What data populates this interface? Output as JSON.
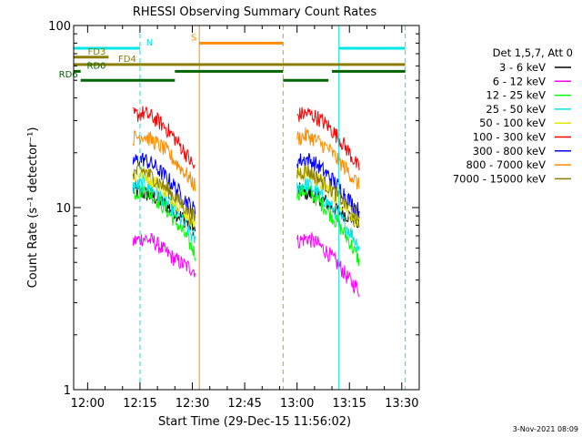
{
  "chart_data": {
    "type": "line",
    "title": "RHESSI Observing Summary Count Rates",
    "xlabel": "Start Time (29-Dec-15 11:56:02)",
    "ylabel": "Count Rate (s⁻¹ detector⁻¹)",
    "y_scale": "log",
    "ylim": [
      1,
      100
    ],
    "y_ticks": [
      "1",
      "10",
      "100"
    ],
    "x_start": "11:56:02",
    "xlim": [
      "11:56",
      "13:35"
    ],
    "x_ticks": [
      "12:00",
      "12:15",
      "12:30",
      "12:45",
      "13:00",
      "13:15",
      "13:30"
    ],
    "legend_header": "Det 1,5,7, Att 0",
    "legend_position": "right",
    "series": [
      {
        "name": "3 - 6 keV",
        "color": "#000000",
        "segments": [
          {
            "x": [
              "12:13",
              "12:16",
              "12:19",
              "12:22",
              "12:25",
              "12:28",
              "12:31"
            ],
            "y": [
              12.5,
              12.0,
              11.5,
              10.5,
              9.5,
              8.5,
              7.5
            ]
          },
          {
            "x": [
              "13:00",
              "13:03",
              "13:06",
              "13:09",
              "13:12",
              "13:15",
              "13:18"
            ],
            "y": [
              12.5,
              12.0,
              11.5,
              10.5,
              9.5,
              9.0,
              8.0
            ]
          }
        ]
      },
      {
        "name": "6 - 12 keV",
        "color": "#ff00ff",
        "segments": [
          {
            "x": [
              "12:13",
              "12:16",
              "12:19",
              "12:22",
              "12:25",
              "12:28",
              "12:31"
            ],
            "y": [
              6.5,
              6.8,
              6.5,
              5.8,
              5.2,
              4.8,
              4.5
            ]
          },
          {
            "x": [
              "13:00",
              "13:03",
              "13:06",
              "13:09",
              "13:12",
              "13:15",
              "13:18"
            ],
            "y": [
              6.5,
              6.8,
              6.3,
              5.6,
              4.8,
              4.0,
              3.5
            ]
          }
        ]
      },
      {
        "name": "12 - 25 keV",
        "color": "#00ff00",
        "segments": [
          {
            "x": [
              "12:13",
              "12:16",
              "12:19",
              "12:22",
              "12:25",
              "12:28",
              "12:31"
            ],
            "y": [
              12.0,
              12.5,
              11.5,
              10.0,
              8.5,
              7.0,
              5.5
            ]
          },
          {
            "x": [
              "13:00",
              "13:03",
              "13:06",
              "13:09",
              "13:12",
              "13:15",
              "13:18"
            ],
            "y": [
              12.0,
              12.5,
              11.0,
              9.5,
              8.0,
              6.5,
              5.0
            ]
          }
        ]
      },
      {
        "name": "25 - 50 keV",
        "color": "#00e5e5",
        "segments": [
          {
            "x": [
              "12:13",
              "12:16",
              "12:19",
              "12:22",
              "12:25",
              "12:28",
              "12:31"
            ],
            "y": [
              13.0,
              13.5,
              12.5,
              11.0,
              9.5,
              8.0,
              6.5
            ]
          },
          {
            "x": [
              "13:00",
              "13:03",
              "13:06",
              "13:09",
              "13:12",
              "13:15",
              "13:18"
            ],
            "y": [
              13.0,
              13.5,
              12.0,
              10.5,
              9.0,
              7.5,
              6.0
            ]
          }
        ]
      },
      {
        "name": "50 - 100 keV",
        "color": "#e5e500",
        "segments": [
          {
            "x": [
              "12:13",
              "12:16",
              "12:19",
              "12:22",
              "12:25",
              "12:28",
              "12:31"
            ],
            "y": [
              15.0,
              15.5,
              14.0,
              12.5,
              11.0,
              9.5,
              8.0
            ]
          },
          {
            "x": [
              "13:00",
              "13:03",
              "13:06",
              "13:09",
              "13:12",
              "13:15",
              "13:18"
            ],
            "y": [
              15.0,
              15.5,
              14.0,
              12.5,
              11.0,
              9.5,
              8.0
            ]
          }
        ]
      },
      {
        "name": "100 - 300 keV",
        "color": "#ff0000",
        "segments": [
          {
            "x": [
              "12:13",
              "12:16",
              "12:19",
              "12:22",
              "12:25",
              "12:28",
              "12:31"
            ],
            "y": [
              32,
              33,
              31,
              28,
              24,
              20,
              16
            ]
          },
          {
            "x": [
              "13:00",
              "13:03",
              "13:06",
              "13:09",
              "13:12",
              "13:15",
              "13:18"
            ],
            "y": [
              32,
              33,
              31,
              28,
              24,
              20,
              16
            ]
          }
        ]
      },
      {
        "name": "300 - 800 keV",
        "color": "#0000ff",
        "segments": [
          {
            "x": [
              "12:13",
              "12:16",
              "12:19",
              "12:22",
              "12:25",
              "12:28",
              "12:31"
            ],
            "y": [
              18,
              18.5,
              17,
              15,
              13,
              11,
              9.5
            ]
          },
          {
            "x": [
              "13:00",
              "13:03",
              "13:06",
              "13:09",
              "13:12",
              "13:15",
              "13:18"
            ],
            "y": [
              18,
              18.5,
              17,
              15,
              13,
              11,
              9.5
            ]
          }
        ]
      },
      {
        "name": "800 - 7000 keV",
        "color": "#ff8c00",
        "segments": [
          {
            "x": [
              "12:13",
              "12:16",
              "12:19",
              "12:22",
              "12:25",
              "12:28",
              "12:31"
            ],
            "y": [
              24,
              25,
              23,
              21,
              18,
              15.5,
              13
            ]
          },
          {
            "x": [
              "13:00",
              "13:03",
              "13:06",
              "13:09",
              "13:12",
              "13:15",
              "13:18"
            ],
            "y": [
              24,
              25,
              23,
              21,
              18,
              15.5,
              13
            ]
          }
        ]
      },
      {
        "name": "7000 - 15000 keV",
        "color": "#8b7d00",
        "segments": [
          {
            "x": [
              "12:13",
              "12:16",
              "12:19",
              "12:22",
              "12:25",
              "12:28",
              "12:31"
            ],
            "y": [
              15.5,
              16,
              14.5,
              13,
              11.5,
              10,
              8.5
            ]
          },
          {
            "x": [
              "13:00",
              "13:03",
              "13:06",
              "13:09",
              "13:12",
              "13:15",
              "13:18"
            ],
            "y": [
              15.5,
              16,
              14.5,
              13,
              11.5,
              10,
              8.5
            ]
          }
        ]
      }
    ],
    "vertical_lines": [
      {
        "x": "11:56",
        "color": "#00e5e5",
        "style": "solid"
      },
      {
        "x": "12:15",
        "color": "#00e5e5",
        "style": "dashed"
      },
      {
        "x": "12:32",
        "color": "#ff8c00",
        "style": "solid"
      },
      {
        "x": "12:56",
        "color": "#ff8c00",
        "style": "dashed"
      },
      {
        "x": "13:12",
        "color": "#00e5e5",
        "style": "solid"
      },
      {
        "x": "13:31",
        "color": "#00e5e5",
        "style": "dashed"
      }
    ],
    "flag_bars": [
      {
        "label": "N",
        "color": "#00e5e5",
        "y": 75,
        "label_x": "12:16",
        "label_side": "right",
        "intervals": [
          [
            "11:56",
            "12:15"
          ],
          [
            "13:12",
            "13:31"
          ]
        ]
      },
      {
        "label": "S",
        "color": "#ff8c00",
        "y": 80,
        "label_x": "12:32",
        "label_side": "left",
        "intervals": [
          [
            "12:32",
            "12:56"
          ]
        ]
      },
      {
        "label": "FD3",
        "color": "#8b7d00",
        "y": 67,
        "label_x": "12:06",
        "label_side": "left",
        "intervals": [
          [
            "11:56",
            "12:06"
          ]
        ]
      },
      {
        "label": "FD4",
        "color": "#8b7d00",
        "y": 61,
        "label_x": "12:08",
        "label_side": "right",
        "intervals": [
          [
            "11:56",
            "13:31"
          ]
        ]
      },
      {
        "label": "RD0",
        "color": "#006400",
        "y": 56,
        "label_x": "11:59",
        "label_side": "right",
        "intervals": [
          [
            "11:56",
            "11:58"
          ],
          [
            "12:25",
            "12:56"
          ],
          [
            "13:10",
            "13:31"
          ]
        ]
      },
      {
        "label": "RD6",
        "color": "#006400",
        "y": 50,
        "label_x": "11:58",
        "label_side": "left",
        "intervals": [
          [
            "11:58",
            "12:25"
          ],
          [
            "12:56",
            "13:09"
          ]
        ]
      }
    ]
  },
  "footer_date": "3-Nov-2021 08:09"
}
